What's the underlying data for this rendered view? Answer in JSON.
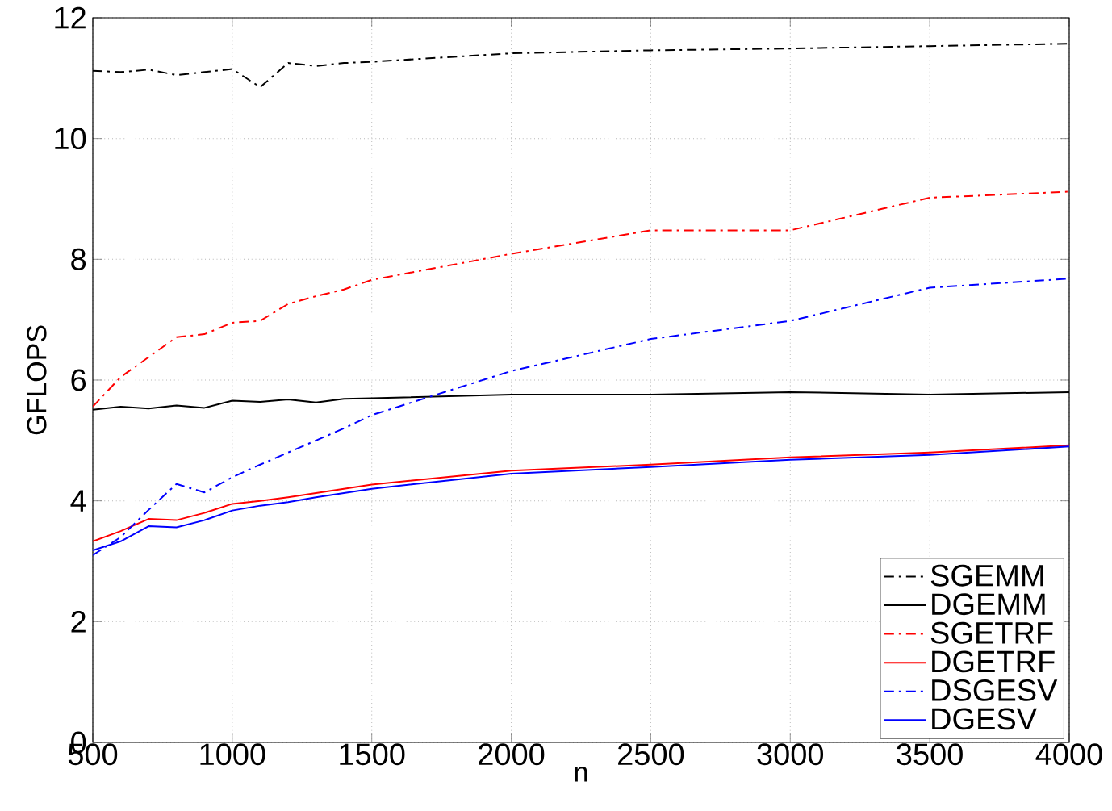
{
  "chart_data": {
    "type": "line",
    "xlabel": "n",
    "ylabel": "GFLOPS",
    "x": [
      500,
      600,
      700,
      800,
      900,
      1000,
      1100,
      1200,
      1300,
      1400,
      1500,
      2000,
      2500,
      3000,
      3500,
      4000
    ],
    "xlim": [
      500,
      4000
    ],
    "xticks": [
      500,
      1000,
      1500,
      2000,
      2500,
      3000,
      3500,
      4000
    ],
    "ylim": [
      0,
      12
    ],
    "yticks": [
      0,
      2,
      4,
      6,
      8,
      10,
      12
    ],
    "grid": true,
    "legend": "bottom right",
    "marker": "none",
    "series": [
      {
        "name": "SGEMM",
        "color": "#000000",
        "line_style": "dashdot",
        "values": [
          11.12,
          11.1,
          11.14,
          11.05,
          11.1,
          11.15,
          10.85,
          11.25,
          11.2,
          11.25,
          11.27,
          11.41,
          11.46,
          11.49,
          11.53,
          11.57
        ]
      },
      {
        "name": "DGEMM",
        "color": "#000000",
        "line_style": "solid",
        "values": [
          5.51,
          5.56,
          5.53,
          5.58,
          5.54,
          5.66,
          5.64,
          5.68,
          5.63,
          5.69,
          5.7,
          5.76,
          5.76,
          5.8,
          5.76,
          5.8
        ]
      },
      {
        "name": "SGETRF",
        "color": "#ff0000",
        "line_style": "dashdot",
        "values": [
          5.56,
          6.05,
          6.38,
          6.71,
          6.76,
          6.95,
          6.98,
          7.26,
          7.39,
          7.5,
          7.66,
          8.09,
          8.48,
          8.48,
          9.02,
          9.12
        ]
      },
      {
        "name": "DGETRF",
        "color": "#ff0000",
        "line_style": "solid",
        "values": [
          3.33,
          3.5,
          3.7,
          3.68,
          3.8,
          3.95,
          4.0,
          4.06,
          4.13,
          4.2,
          4.27,
          4.5,
          4.6,
          4.72,
          4.8,
          4.92
        ]
      },
      {
        "name": "DSGESV",
        "color": "#0000ff",
        "line_style": "dashdot",
        "values": [
          3.1,
          3.4,
          3.85,
          4.28,
          4.14,
          4.39,
          4.6,
          4.8,
          5.0,
          5.2,
          5.42,
          6.15,
          6.68,
          6.98,
          7.53,
          7.68
        ]
      },
      {
        "name": "DGESV",
        "color": "#0000ff",
        "line_style": "solid",
        "values": [
          3.18,
          3.33,
          3.58,
          3.56,
          3.68,
          3.84,
          3.92,
          3.98,
          4.06,
          4.13,
          4.2,
          4.45,
          4.56,
          4.68,
          4.76,
          4.9
        ]
      }
    ]
  }
}
